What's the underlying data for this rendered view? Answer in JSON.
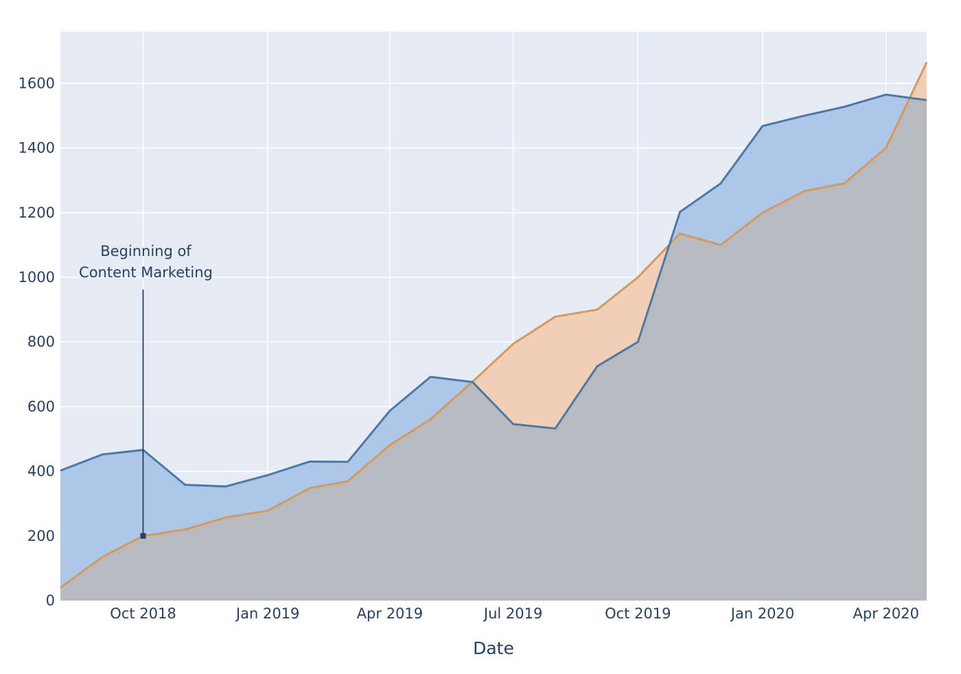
{
  "chart_data": {
    "type": "area",
    "xlabel": "Date",
    "ylabel": "",
    "x": [
      "2018-08-01",
      "2018-09-01",
      "2018-10-01",
      "2018-11-01",
      "2018-12-01",
      "2019-01-01",
      "2019-02-01",
      "2019-03-01",
      "2019-04-01",
      "2019-05-01",
      "2019-06-01",
      "2019-07-01",
      "2019-08-01",
      "2019-09-01",
      "2019-10-01",
      "2019-11-01",
      "2019-12-01",
      "2020-01-01",
      "2020-02-01",
      "2020-03-01",
      "2020-04-01",
      "2020-05-01"
    ],
    "xlim": [
      "2018-08-01",
      "2020-05-01"
    ],
    "ylim": [
      0,
      1760
    ],
    "y_ticks": [
      0,
      200,
      400,
      600,
      800,
      1000,
      1200,
      1400,
      1600
    ],
    "y_tick_labels": [
      "0",
      "200",
      "400",
      "600",
      "800",
      "1000",
      "1200",
      "1400",
      "1600"
    ],
    "x_ticks": [
      "2018-10-01",
      "2019-01-01",
      "2019-04-01",
      "2019-07-01",
      "2019-10-01",
      "2020-01-01",
      "2020-04-01"
    ],
    "x_tick_labels": [
      "Oct 2018",
      "Jan 2019",
      "Apr 2019",
      "Jul 2019",
      "Oct 2019",
      "Jan 2020",
      "Apr 2020"
    ],
    "grid": true,
    "series": [
      {
        "values": [
          402,
          452,
          466,
          358,
          353,
          388,
          430,
          429,
          587,
          692,
          676,
          546,
          532,
          725,
          800,
          1202,
          1290,
          1468,
          1500,
          1527,
          1565,
          1548
        ],
        "color": "#4c78a8",
        "fill": "#aec7e8"
      },
      {
        "values": [
          40,
          135,
          200,
          220,
          257,
          278,
          348,
          369,
          481,
          561,
          677,
          794,
          878,
          900,
          1000,
          1135,
          1100,
          1200,
          1267,
          1290,
          1400,
          1665
        ]
      }
    ],
    "series_colors": {
      "blue_line": "#4c78a8",
      "blue_fill": "#aec7e8",
      "orange_line": "#d4995b",
      "orange_fill": "#f0cfb6",
      "overlap_fill": "#b9bac0",
      "plot_bg": "#e5ecf6",
      "grid": "#ffffff",
      "text": "#2a3f5f"
    },
    "annotations": [
      {
        "text_lines": [
          "Beginning of",
          "Content Marketing"
        ],
        "x": "2018-10-01",
        "y": 200,
        "arrow_tip_y": 200,
        "text_y": 1000
      }
    ]
  }
}
